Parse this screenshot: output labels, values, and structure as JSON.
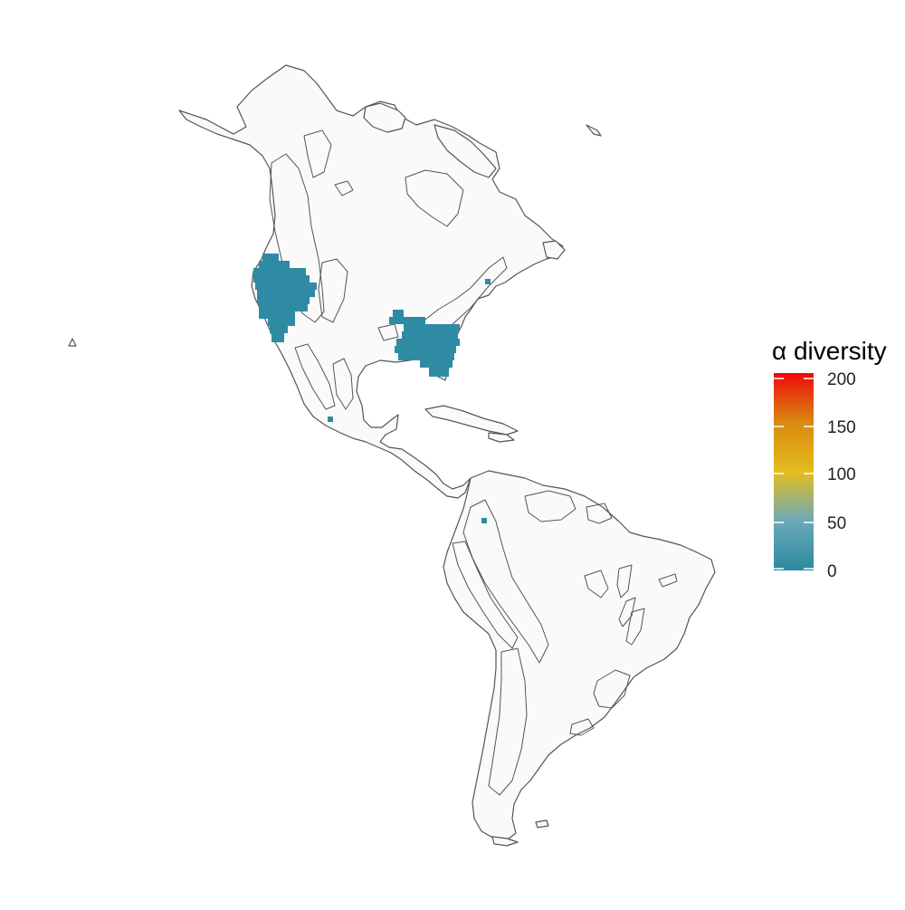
{
  "legend": {
    "title": "α diversity",
    "ticks": [
      "200",
      "150",
      "100",
      "50",
      "0"
    ]
  },
  "scale": {
    "min": 0,
    "max": 200,
    "stops": [
      {
        "value": 0,
        "color": "#2b8aa0"
      },
      {
        "value": 50,
        "color": "#6aaab8"
      },
      {
        "value": 100,
        "color": "#e3bd1e"
      },
      {
        "value": 150,
        "color": "#d98a10"
      },
      {
        "value": 200,
        "color": "#ee0a0a"
      }
    ]
  },
  "colors": {
    "cell": "#2f8ba3",
    "land_fill": "#fafafa",
    "border": "#555555"
  },
  "occupied_regions": [
    "western-north-america",
    "southeastern-north-america"
  ],
  "map_data": {
    "type": "choropleth-grid",
    "value_min_observed": 0,
    "value_max_observed": 10
  }
}
